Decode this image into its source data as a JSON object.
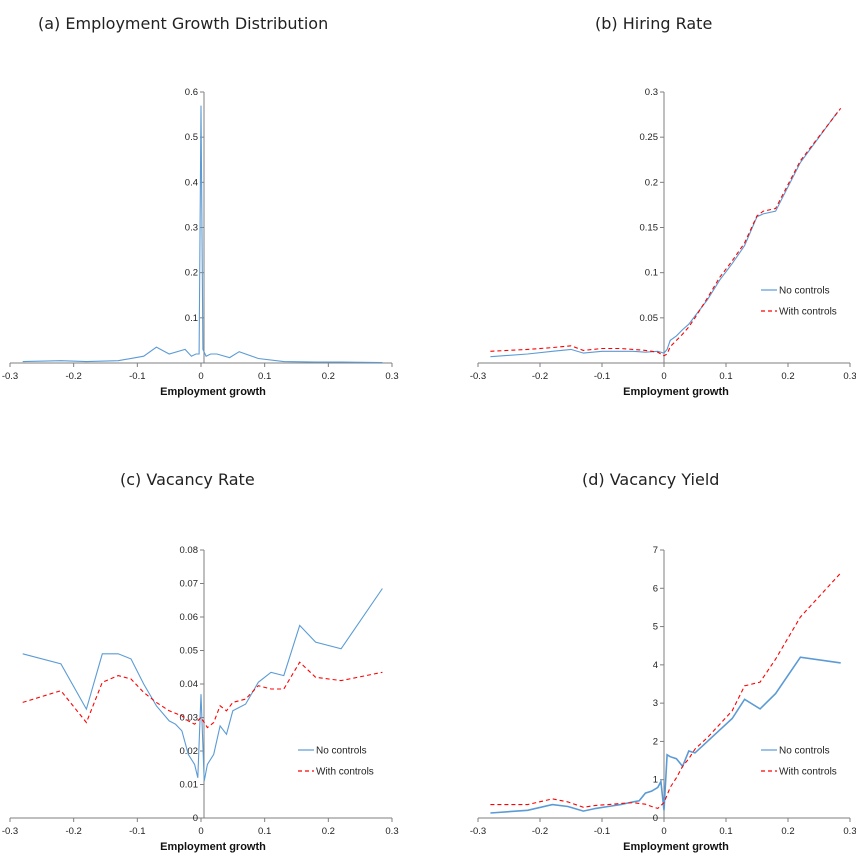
{
  "colors": {
    "no_controls": "#5b9bd5",
    "with_controls": "#ff0000",
    "axis": "#7f7f7f"
  },
  "chart_data": [
    {
      "id": "a",
      "type": "line",
      "title": "(a)  Employment Growth Distribution",
      "xlabel": "Employment growth",
      "ylabel": "",
      "xlim": [
        -0.3,
        0.3
      ],
      "ylim": [
        0,
        0.6
      ],
      "xticks": [
        "-0.3",
        "-0.2",
        "-0.1",
        "0",
        "0.1",
        "0.2",
        "0.3"
      ],
      "yticks": [
        "0.1",
        "0.2",
        "0.3",
        "0.4",
        "0.5",
        "0.6"
      ],
      "legend": null,
      "series": [
        {
          "key": "no_controls",
          "x": [
            -0.28,
            -0.22,
            -0.18,
            -0.13,
            -0.09,
            -0.07,
            -0.05,
            -0.025,
            -0.015,
            -0.008,
            -0.003,
            0,
            0.003,
            0.008,
            0.015,
            0.025,
            0.045,
            0.06,
            0.09,
            0.13,
            0.18,
            0.22,
            0.285
          ],
          "y": [
            0.003,
            0.005,
            0.003,
            0.005,
            0.015,
            0.035,
            0.02,
            0.03,
            0.015,
            0.02,
            0.02,
            0.57,
            0.03,
            0.015,
            0.02,
            0.02,
            0.012,
            0.025,
            0.01,
            0.003,
            0.002,
            0.002,
            0.001
          ]
        }
      ]
    },
    {
      "id": "b",
      "type": "line",
      "title": "(b)  Hiring Rate",
      "xlabel": "Employment growth",
      "ylabel": "",
      "xlim": [
        -0.3,
        0.3
      ],
      "ylim": [
        0,
        0.3
      ],
      "xticks": [
        "-0.3",
        "-0.2",
        "-0.1",
        "0",
        "0.1",
        "0.2",
        "0.3"
      ],
      "yticks": [
        "0.05",
        "0.1",
        "0.15",
        "0.2",
        "0.25",
        "0.3"
      ],
      "legend": {
        "position": "right",
        "entries": [
          "No controls",
          "With controls"
        ]
      },
      "series": [
        {
          "key": "no_controls",
          "name": "No controls",
          "x": [
            -0.28,
            -0.22,
            -0.18,
            -0.15,
            -0.13,
            -0.1,
            -0.07,
            -0.05,
            -0.03,
            -0.01,
            0,
            0.005,
            0.01,
            0.02,
            0.03,
            0.04,
            0.05,
            0.07,
            0.09,
            0.11,
            0.13,
            0.15,
            0.16,
            0.18,
            0.22,
            0.28
          ],
          "y": [
            0.007,
            0.01,
            0.013,
            0.015,
            0.011,
            0.013,
            0.013,
            0.013,
            0.012,
            0.013,
            0.011,
            0.015,
            0.025,
            0.03,
            0.037,
            0.043,
            0.052,
            0.07,
            0.092,
            0.11,
            0.13,
            0.162,
            0.165,
            0.168,
            0.222,
            0.278
          ]
        },
        {
          "key": "with_controls",
          "name": "With controls",
          "x": [
            -0.28,
            -0.22,
            -0.18,
            -0.15,
            -0.13,
            -0.1,
            -0.07,
            -0.05,
            -0.03,
            -0.01,
            0,
            0.005,
            0.01,
            0.02,
            0.03,
            0.04,
            0.05,
            0.07,
            0.09,
            0.11,
            0.13,
            0.15,
            0.16,
            0.18,
            0.22,
            0.285
          ],
          "y": [
            0.013,
            0.015,
            0.017,
            0.019,
            0.014,
            0.016,
            0.016,
            0.015,
            0.014,
            0.012,
            0.008,
            0.01,
            0.018,
            0.025,
            0.032,
            0.04,
            0.05,
            0.072,
            0.095,
            0.113,
            0.133,
            0.163,
            0.168,
            0.171,
            0.224,
            0.282
          ]
        }
      ]
    },
    {
      "id": "c",
      "type": "line",
      "title": "(c)  Vacancy Rate",
      "xlabel": "Employment growth",
      "ylabel": "",
      "xlim": [
        -0.3,
        0.3
      ],
      "ylim": [
        0,
        0.08
      ],
      "xticks": [
        "-0.3",
        "-0.2",
        "-0.1",
        "0",
        "0.1",
        "0.2",
        "0.3"
      ],
      "yticks": [
        "0",
        "0.01",
        "0.02",
        "0.03",
        "0.04",
        "0.05",
        "0.06",
        "0.07",
        "0.08"
      ],
      "legend": {
        "position": "right",
        "entries": [
          "No controls",
          "With controls"
        ]
      },
      "series": [
        {
          "key": "no_controls",
          "name": "No controls",
          "x": [
            -0.28,
            -0.22,
            -0.18,
            -0.155,
            -0.13,
            -0.11,
            -0.09,
            -0.07,
            -0.05,
            -0.04,
            -0.03,
            -0.02,
            -0.01,
            -0.005,
            0,
            0.005,
            0.01,
            0.02,
            0.03,
            0.04,
            0.05,
            0.07,
            0.09,
            0.11,
            0.13,
            0.155,
            0.18,
            0.22,
            0.285
          ],
          "y": [
            0.049,
            0.046,
            0.0325,
            0.049,
            0.049,
            0.0475,
            0.04,
            0.0335,
            0.029,
            0.028,
            0.026,
            0.019,
            0.016,
            0.012,
            0.037,
            0.011,
            0.016,
            0.019,
            0.0275,
            0.025,
            0.032,
            0.034,
            0.0405,
            0.0435,
            0.0425,
            0.0575,
            0.0525,
            0.0505,
            0.0685
          ]
        },
        {
          "key": "with_controls",
          "name": "With controls",
          "x": [
            -0.28,
            -0.22,
            -0.18,
            -0.155,
            -0.13,
            -0.11,
            -0.09,
            -0.07,
            -0.05,
            -0.03,
            -0.02,
            -0.01,
            0,
            0.01,
            0.02,
            0.03,
            0.04,
            0.05,
            0.07,
            0.09,
            0.11,
            0.13,
            0.155,
            0.18,
            0.22,
            0.285
          ],
          "y": [
            0.0345,
            0.038,
            0.0285,
            0.0405,
            0.0425,
            0.0415,
            0.0375,
            0.0345,
            0.032,
            0.0305,
            0.029,
            0.028,
            0.03,
            0.027,
            0.0285,
            0.0335,
            0.032,
            0.0345,
            0.0355,
            0.0395,
            0.0385,
            0.0385,
            0.0465,
            0.042,
            0.041,
            0.0435
          ]
        }
      ]
    },
    {
      "id": "d",
      "type": "line",
      "title": "(d)  Vacancy Yield",
      "xlabel": "Employment growth",
      "ylabel": "",
      "xlim": [
        -0.3,
        0.3
      ],
      "ylim": [
        0,
        7
      ],
      "xticks": [
        "-0.3",
        "-0.2",
        "-0.1",
        "0",
        "0.1",
        "0.2",
        "0.3"
      ],
      "yticks": [
        "0",
        "1",
        "2",
        "3",
        "4",
        "5",
        "6",
        "7"
      ],
      "legend": {
        "position": "right",
        "entries": [
          "No controls",
          "With controls"
        ]
      },
      "series": [
        {
          "key": "no_controls",
          "name": "No controls",
          "x": [
            -0.28,
            -0.22,
            -0.18,
            -0.155,
            -0.13,
            -0.11,
            -0.09,
            -0.07,
            -0.05,
            -0.04,
            -0.03,
            -0.02,
            -0.01,
            -0.005,
            0,
            0.005,
            0.01,
            0.02,
            0.03,
            0.04,
            0.05,
            0.07,
            0.09,
            0.11,
            0.13,
            0.155,
            0.18,
            0.22,
            0.285
          ],
          "y": [
            0.13,
            0.2,
            0.35,
            0.3,
            0.18,
            0.25,
            0.3,
            0.35,
            0.42,
            0.45,
            0.65,
            0.7,
            0.8,
            0.95,
            0.2,
            1.65,
            1.6,
            1.55,
            1.35,
            1.75,
            1.7,
            2.0,
            2.3,
            2.6,
            3.1,
            2.85,
            3.25,
            4.2,
            4.05
          ]
        },
        {
          "key": "with_controls",
          "name": "With controls",
          "x": [
            -0.28,
            -0.22,
            -0.18,
            -0.155,
            -0.13,
            -0.11,
            -0.09,
            -0.07,
            -0.05,
            -0.03,
            -0.02,
            -0.01,
            0,
            0.01,
            0.02,
            0.03,
            0.04,
            0.05,
            0.07,
            0.09,
            0.11,
            0.13,
            0.155,
            0.18,
            0.22,
            0.285
          ],
          "y": [
            0.35,
            0.35,
            0.5,
            0.42,
            0.28,
            0.33,
            0.35,
            0.38,
            0.4,
            0.36,
            0.3,
            0.25,
            0.4,
            0.8,
            1.05,
            1.35,
            1.55,
            1.8,
            2.1,
            2.45,
            2.8,
            3.45,
            3.55,
            4.15,
            5.25,
            6.4
          ]
        }
      ]
    }
  ]
}
